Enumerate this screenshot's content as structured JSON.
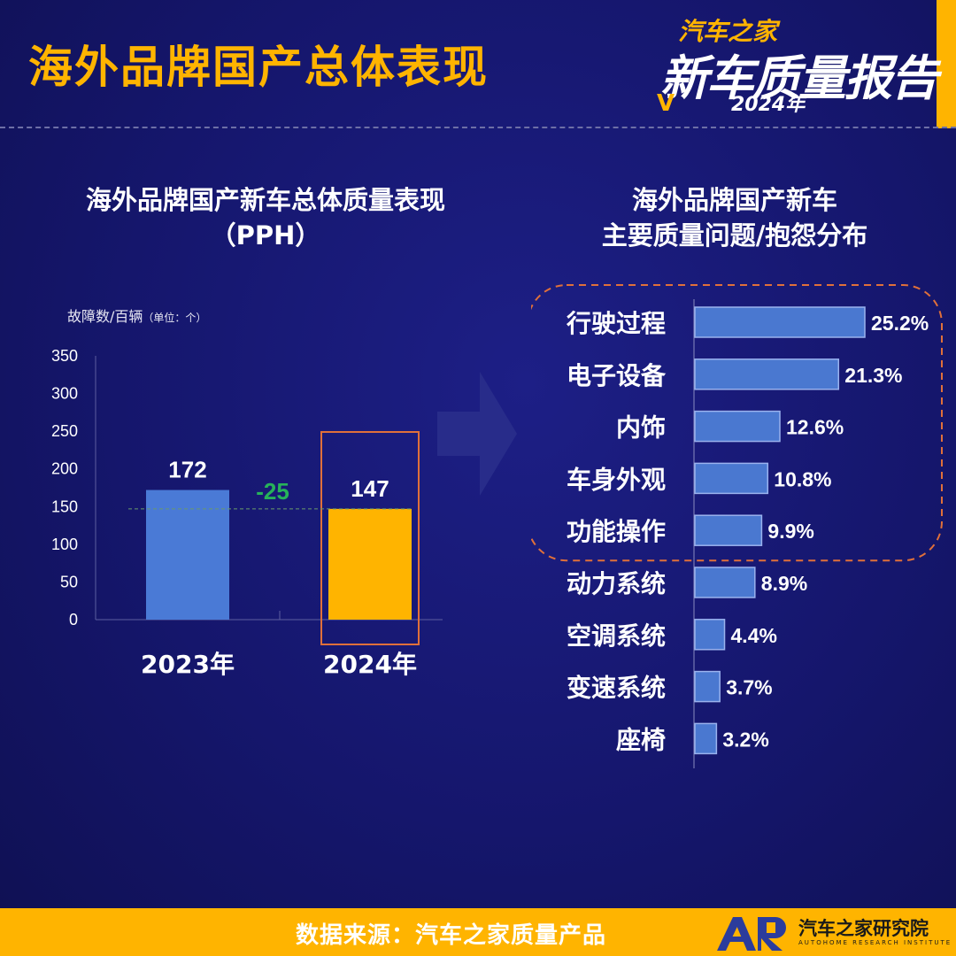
{
  "header": {
    "title": "海外品牌国产总体表现",
    "logo": {
      "top": "汽车之家",
      "main": "新车质量报告",
      "year": "2024年"
    }
  },
  "footer": {
    "source": "数据来源：汽车之家质量产品",
    "org": "汽车之家研究院",
    "org_en": "AUTOHOME RESEARCH INSTITUTE"
  },
  "colors": {
    "accent": "#ffb400",
    "bar_2023": "#4a7ad6",
    "bar_2024": "#ffb400",
    "highlight_box": "#e0703a",
    "delta": "#27b35a",
    "hbar": "#4a78d0"
  },
  "chart_data": [
    {
      "type": "bar",
      "title": "海外品牌国产新车总体质量表现",
      "subtitle": "（PPH）",
      "ylabel": "故障数/百辆",
      "ylabel_unit": "（单位：个）",
      "categories": [
        "2023年",
        "2024年"
      ],
      "values": [
        172,
        147
      ],
      "ylim": [
        0,
        350
      ],
      "yticks": [
        0,
        50,
        100,
        150,
        200,
        250,
        300,
        350
      ],
      "delta_label": "-25",
      "highlight": "2024年",
      "grid": false
    },
    {
      "type": "bar",
      "orientation": "horizontal",
      "title": "海外品牌国产新车",
      "subtitle": "主要质量问题/抱怨分布",
      "categories": [
        "行驶过程",
        "电子设备",
        "内饰",
        "车身外观",
        "功能操作",
        "动力系统",
        "空调系统",
        "变速系统",
        "座椅"
      ],
      "values": [
        25.2,
        21.3,
        12.6,
        10.8,
        9.9,
        8.9,
        4.4,
        3.7,
        3.2
      ],
      "value_labels": [
        "25.2%",
        "21.3%",
        "12.6%",
        "10.8%",
        "9.9%",
        "8.9%",
        "4.4%",
        "3.7%",
        "3.2%"
      ],
      "highlight_top": 5
    }
  ]
}
